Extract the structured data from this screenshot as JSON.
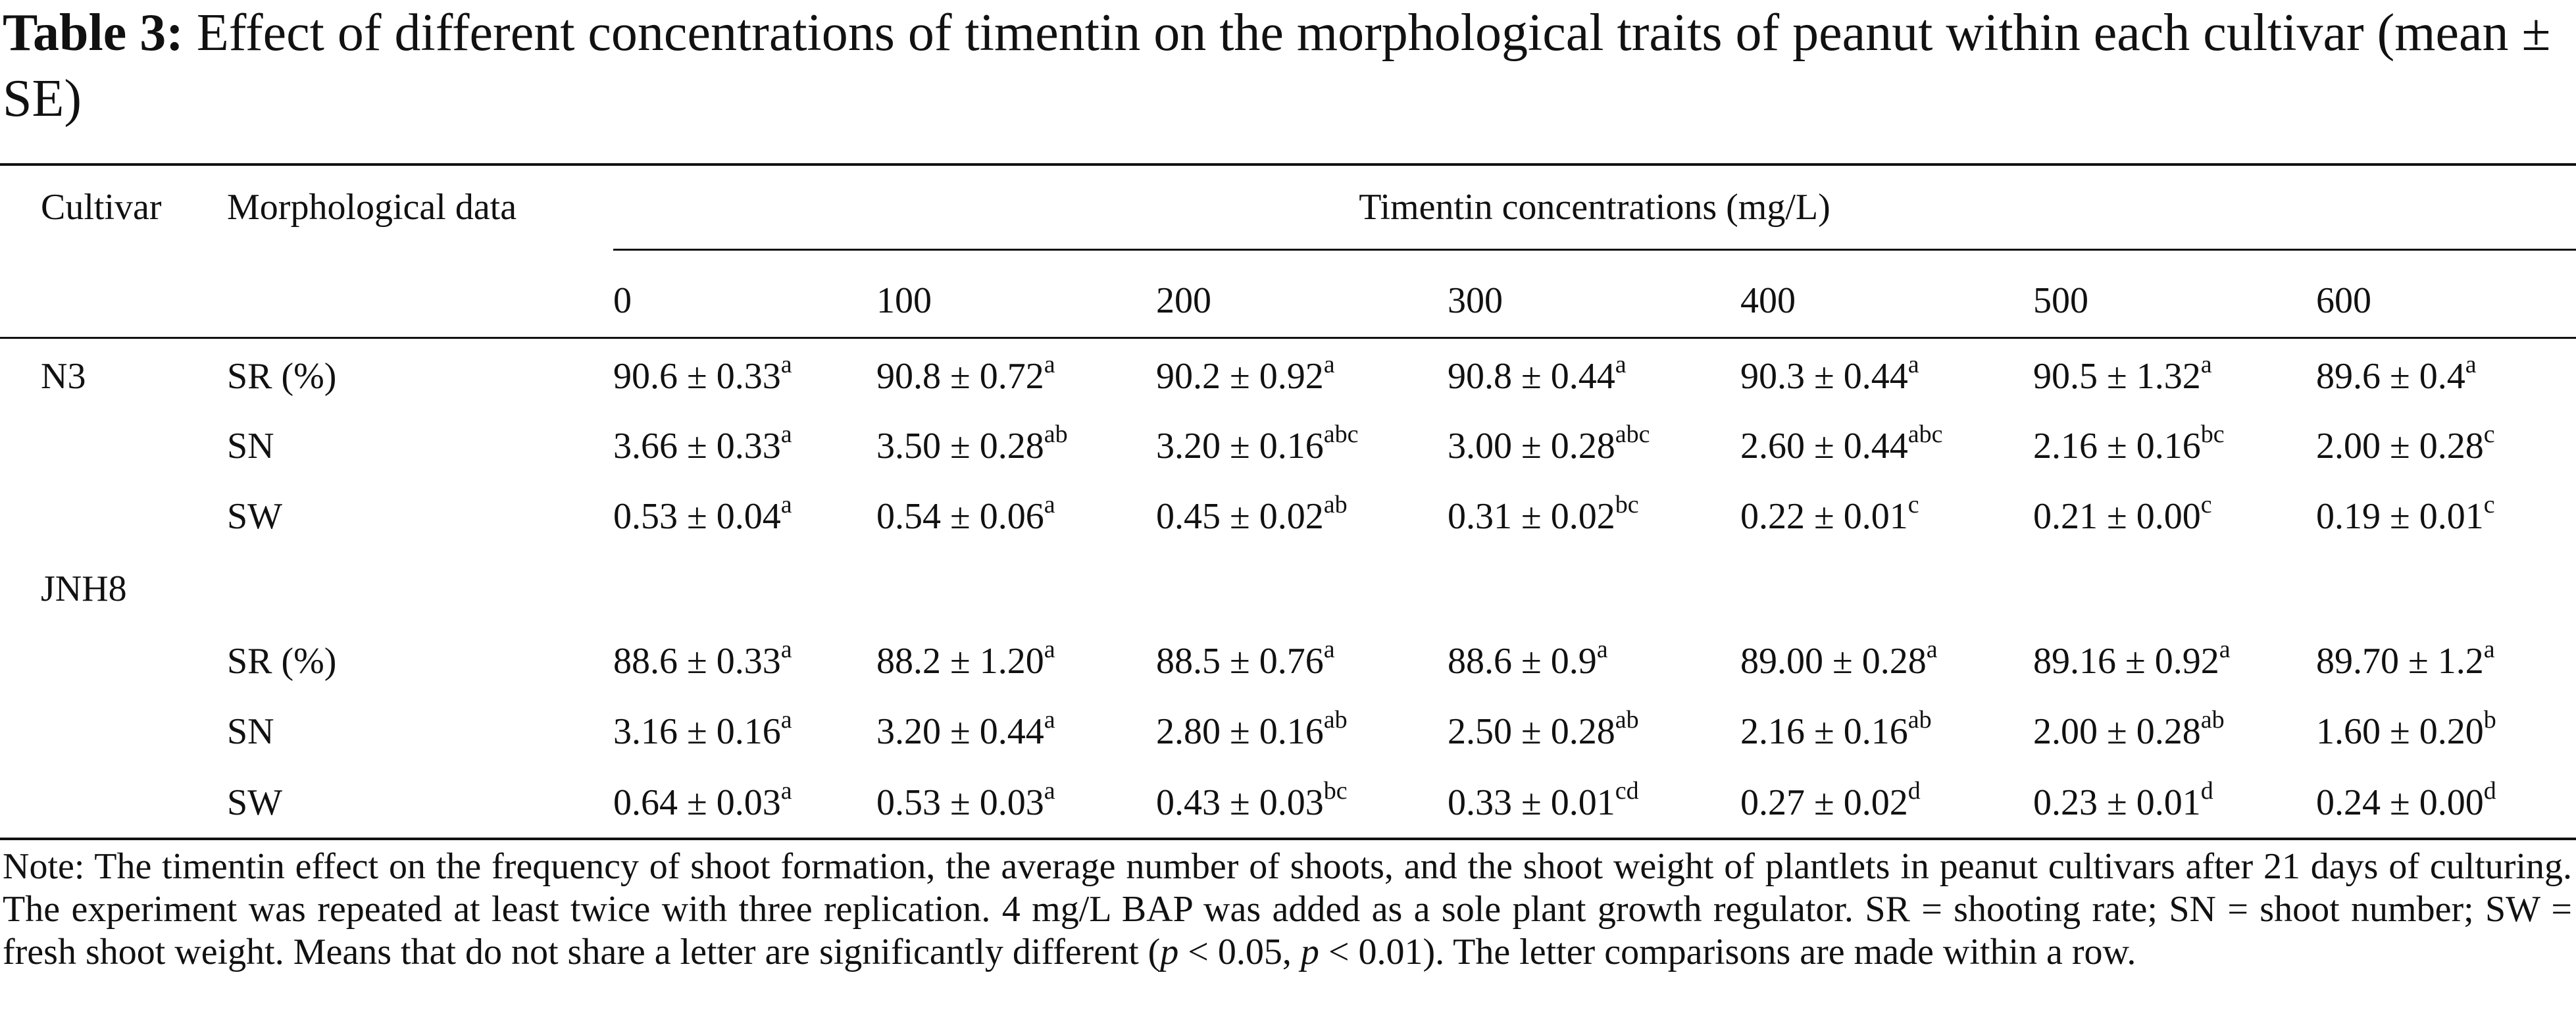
{
  "title": {
    "label": "Table 3:",
    "text": "Effect of different concentrations of timentin on the morphological traits of peanut within each cultivar (mean ± SE)"
  },
  "table": {
    "header": {
      "cultivar": "Cultivar",
      "trait": "Morphological data",
      "group": "Timentin concentrations (mg/L)",
      "concentrations": [
        "0",
        "100",
        "200",
        "300",
        "400",
        "500",
        "600"
      ]
    },
    "rows": [
      {
        "cultivar": "N3",
        "trait": "SR (%)",
        "cells": [
          {
            "value": "90.6 ± 0.33",
            "sup": "a"
          },
          {
            "value": "90.8 ± 0.72",
            "sup": "a"
          },
          {
            "value": "90.2 ± 0.92",
            "sup": "a"
          },
          {
            "value": "90.8 ± 0.44",
            "sup": "a"
          },
          {
            "value": "90.3 ± 0.44",
            "sup": "a"
          },
          {
            "value": "90.5 ± 1.32",
            "sup": "a"
          },
          {
            "value": "89.6 ± 0.4",
            "sup": "a"
          }
        ]
      },
      {
        "trait": "SN",
        "cells": [
          {
            "value": "3.66 ± 0.33",
            "sup": "a"
          },
          {
            "value": "3.50 ± 0.28",
            "sup": "ab"
          },
          {
            "value": "3.20 ± 0.16",
            "sup": "abc"
          },
          {
            "value": "3.00 ± 0.28",
            "sup": "abc"
          },
          {
            "value": "2.60 ± 0.44",
            "sup": "abc"
          },
          {
            "value": "2.16 ± 0.16",
            "sup": "bc"
          },
          {
            "value": "2.00 ± 0.28",
            "sup": "c"
          }
        ]
      },
      {
        "trait": "SW",
        "cells": [
          {
            "value": "0.53 ± 0.04",
            "sup": "a"
          },
          {
            "value": "0.54 ± 0.06",
            "sup": "a"
          },
          {
            "value": "0.45 ± 0.02",
            "sup": "ab"
          },
          {
            "value": "0.31 ± 0.02",
            "sup": "bc"
          },
          {
            "value": "0.22 ± 0.01",
            "sup": "c"
          },
          {
            "value": "0.21 ± 0.00",
            "sup": "c"
          },
          {
            "value": "0.19 ± 0.01",
            "sup": "c"
          }
        ]
      },
      {
        "cultivar": "JNH8"
      },
      {
        "trait": "SR (%)",
        "cells": [
          {
            "value": "88.6 ± 0.33",
            "sup": "a"
          },
          {
            "value": "88.2 ± 1.20",
            "sup": "a"
          },
          {
            "value": "88.5 ± 0.76",
            "sup": "a"
          },
          {
            "value": "88.6 ± 0.9",
            "sup": "a"
          },
          {
            "value": "89.00 ± 0.28",
            "sup": "a"
          },
          {
            "value": "89.16 ± 0.92",
            "sup": "a"
          },
          {
            "value": "89.70 ± 1.2",
            "sup": "a"
          }
        ]
      },
      {
        "trait": "SN",
        "cells": [
          {
            "value": "3.16 ± 0.16",
            "sup": "a"
          },
          {
            "value": "3.20 ± 0.44",
            "sup": "a"
          },
          {
            "value": "2.80 ± 0.16",
            "sup": "ab"
          },
          {
            "value": "2.50 ± 0.28",
            "sup": "ab"
          },
          {
            "value": "2.16 ± 0.16",
            "sup": "ab"
          },
          {
            "value": "2.00 ± 0.28",
            "sup": "ab"
          },
          {
            "value": "1.60 ± 0.20",
            "sup": "b"
          }
        ]
      },
      {
        "trait": "SW",
        "cells": [
          {
            "value": "0.64 ± 0.03",
            "sup": "a"
          },
          {
            "value": "0.53 ± 0.03",
            "sup": "a"
          },
          {
            "value": "0.43 ± 0.03",
            "sup": "bc"
          },
          {
            "value": "0.33 ± 0.01",
            "sup": "cd"
          },
          {
            "value": "0.27 ± 0.02",
            "sup": "d"
          },
          {
            "value": "0.23 ± 0.01",
            "sup": "d"
          },
          {
            "value": "0.24 ± 0.00",
            "sup": "d"
          }
        ]
      }
    ]
  },
  "note": [
    "Note: The timentin effect on the frequency of shoot formation, the average number of shoots, and the shoot weight of plantlets in peanut cultivars after 21 days of culturing. The experiment was repeated at least twice with three replication. 4 mg/L BAP was added as a sole plant growth regulator. SR = shooting rate; SN = shoot number; SW = fresh shoot weight. Means that do not share a letter are significantly different (",
    "p",
    " < 0.05, ",
    "p",
    " < 0.01). The letter comparisons are made within a row."
  ]
}
